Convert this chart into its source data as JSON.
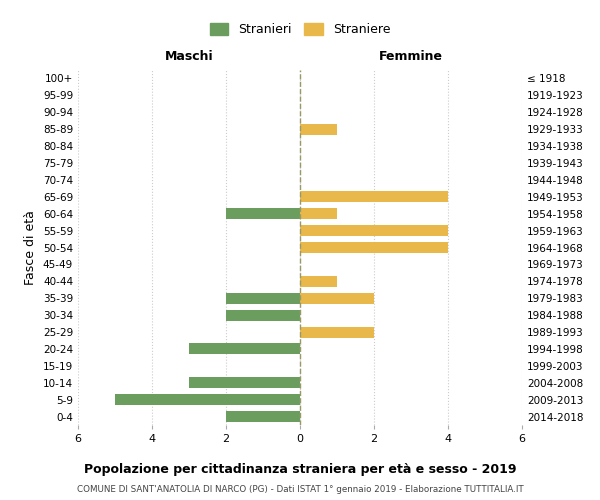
{
  "age_groups": [
    "100+",
    "95-99",
    "90-94",
    "85-89",
    "80-84",
    "75-79",
    "70-74",
    "65-69",
    "60-64",
    "55-59",
    "50-54",
    "45-49",
    "40-44",
    "35-39",
    "30-34",
    "25-29",
    "20-24",
    "15-19",
    "10-14",
    "5-9",
    "0-4"
  ],
  "birth_years": [
    "≤ 1918",
    "1919-1923",
    "1924-1928",
    "1929-1933",
    "1934-1938",
    "1939-1943",
    "1944-1948",
    "1949-1953",
    "1954-1958",
    "1959-1963",
    "1964-1968",
    "1969-1973",
    "1974-1978",
    "1979-1983",
    "1984-1988",
    "1989-1993",
    "1994-1998",
    "1999-2003",
    "2004-2008",
    "2009-2013",
    "2014-2018"
  ],
  "maschi": [
    0,
    0,
    0,
    0,
    0,
    0,
    0,
    0,
    2,
    0,
    0,
    0,
    0,
    2,
    2,
    0,
    3,
    0,
    3,
    5,
    2
  ],
  "femmine": [
    0,
    0,
    0,
    1,
    0,
    0,
    0,
    4,
    1,
    4,
    4,
    0,
    1,
    2,
    0,
    2,
    0,
    0,
    0,
    0,
    0
  ],
  "color_maschi": "#6b9e5e",
  "color_femmine": "#e8b84b",
  "title_main": "Popolazione per cittadinanza straniera per età e sesso - 2019",
  "title_sub": "COMUNE DI SANT'ANATOLIA DI NARCO (PG) - Dati ISTAT 1° gennaio 2019 - Elaborazione TUTTITALIA.IT",
  "label_maschi": "Maschi",
  "label_femmine": "Femmine",
  "legend_stranieri": "Stranieri",
  "legend_straniere": "Straniere",
  "ylabel_left": "Fasce di età",
  "xlim": 6,
  "background_color": "#ffffff",
  "grid_color": "#cccccc"
}
